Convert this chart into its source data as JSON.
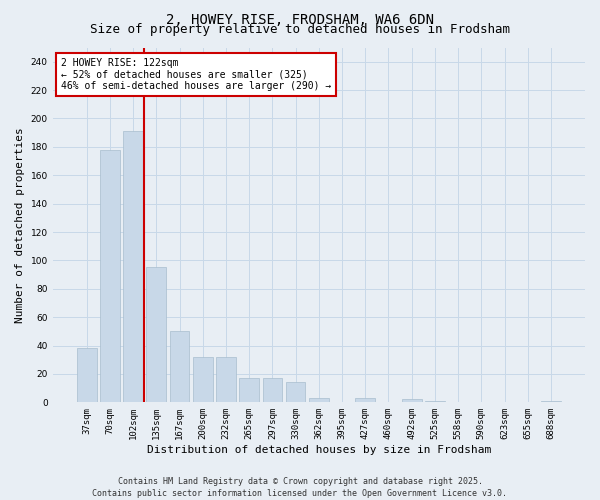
{
  "title1": "2, HOWEY RISE, FRODSHAM, WA6 6DN",
  "title2": "Size of property relative to detached houses in Frodsham",
  "xlabel": "Distribution of detached houses by size in Frodsham",
  "ylabel": "Number of detached properties",
  "categories": [
    "37sqm",
    "70sqm",
    "102sqm",
    "135sqm",
    "167sqm",
    "200sqm",
    "232sqm",
    "265sqm",
    "297sqm",
    "330sqm",
    "362sqm",
    "395sqm",
    "427sqm",
    "460sqm",
    "492sqm",
    "525sqm",
    "558sqm",
    "590sqm",
    "623sqm",
    "655sqm",
    "688sqm"
  ],
  "values": [
    38,
    178,
    191,
    95,
    50,
    32,
    32,
    17,
    17,
    14,
    3,
    0,
    3,
    0,
    2,
    1,
    0,
    0,
    0,
    0,
    1
  ],
  "bar_color": "#c8d8e8",
  "bar_edge_color": "#a8bece",
  "vline_color": "#cc0000",
  "annotation_text": "2 HOWEY RISE: 122sqm\n← 52% of detached houses are smaller (325)\n46% of semi-detached houses are larger (290) →",
  "annotation_box_color": "#ffffff",
  "annotation_border_color": "#cc0000",
  "ylim": [
    0,
    250
  ],
  "yticks": [
    0,
    20,
    40,
    60,
    80,
    100,
    120,
    140,
    160,
    180,
    200,
    220,
    240
  ],
  "grid_color": "#c8d8e8",
  "background_color": "#e8eef4",
  "footer_text": "Contains HM Land Registry data © Crown copyright and database right 2025.\nContains public sector information licensed under the Open Government Licence v3.0.",
  "title1_fontsize": 10,
  "title2_fontsize": 9,
  "xlabel_fontsize": 8,
  "ylabel_fontsize": 8,
  "tick_fontsize": 6.5,
  "annotation_fontsize": 7,
  "footer_fontsize": 6
}
